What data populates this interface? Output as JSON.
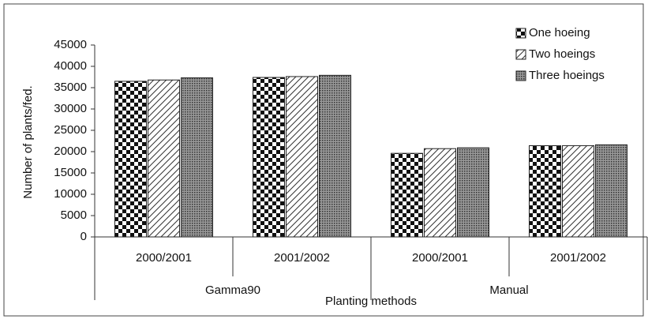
{
  "chart_data": {
    "type": "bar",
    "x_label": "Planting methods",
    "y_label": "Number of plants/fed.",
    "groups": [
      {
        "name": "Gamma90",
        "categories": [
          "2000/2001",
          "2001/2002"
        ]
      },
      {
        "name": "Manual",
        "categories": [
          "2000/2001",
          "2001/2002"
        ]
      }
    ],
    "series": [
      {
        "name": "One hoeing",
        "values": [
          36500,
          37400,
          19600,
          21400
        ]
      },
      {
        "name": "Two hoeings",
        "values": [
          36800,
          37600,
          20700,
          21400
        ]
      },
      {
        "name": "Three hoeings",
        "values": [
          37300,
          37900,
          20900,
          21600
        ]
      }
    ],
    "ylim": [
      0,
      45000
    ],
    "yticks": [
      0,
      5000,
      10000,
      15000,
      20000,
      25000,
      30000,
      35000,
      40000,
      45000
    ],
    "legend": "top-right"
  }
}
